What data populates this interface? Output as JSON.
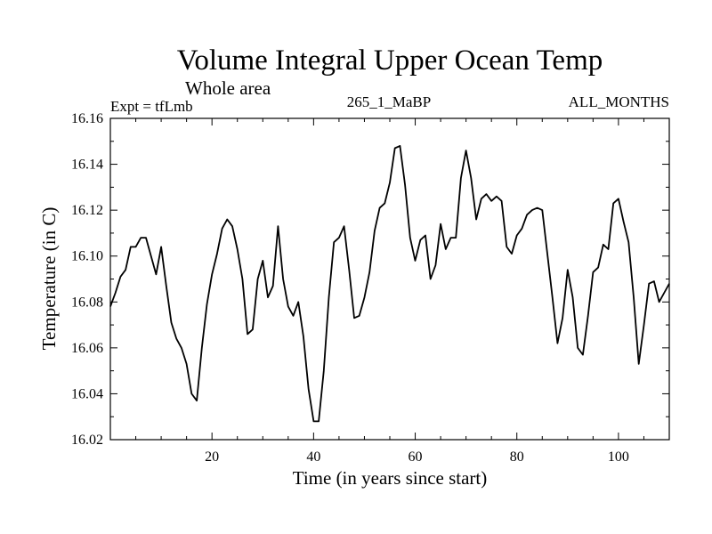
{
  "chart_data": {
    "type": "line",
    "title": "Volume Integral Upper Ocean Temp",
    "subtitle": "Whole area",
    "expt_label": "Expt = tfLmb",
    "run_label": "265_1_MaBP",
    "months_label": "ALL_MONTHS",
    "xlabel": "Time (in years since start)",
    "ylabel": "Temperature (in C)",
    "xlim": [
      0,
      110
    ],
    "ylim": [
      16.02,
      16.16
    ],
    "x_ticks": [
      20,
      40,
      60,
      80,
      100
    ],
    "y_ticks": [
      "16.02",
      "16.04",
      "16.06",
      "16.08",
      "16.10",
      "16.12",
      "16.14",
      "16.16"
    ],
    "series": [
      {
        "name": "Temperature",
        "x": [
          0,
          1,
          2,
          3,
          4,
          5,
          6,
          7,
          8,
          9,
          10,
          11,
          12,
          13,
          14,
          15,
          16,
          17,
          18,
          19,
          20,
          21,
          22,
          23,
          24,
          25,
          26,
          27,
          28,
          29,
          30,
          31,
          32,
          33,
          34,
          35,
          36,
          37,
          38,
          39,
          40,
          41,
          42,
          43,
          44,
          45,
          46,
          47,
          48,
          49,
          50,
          51,
          52,
          53,
          54,
          55,
          56,
          57,
          58,
          59,
          60,
          61,
          62,
          63,
          64,
          65,
          66,
          67,
          68,
          69,
          70,
          71,
          72,
          73,
          74,
          75,
          76,
          77,
          78,
          79,
          80,
          81,
          82,
          83,
          84,
          85,
          86,
          87,
          88,
          89,
          90,
          91,
          92,
          93,
          94,
          95,
          96,
          97,
          98,
          99,
          100,
          101,
          102,
          103,
          104,
          105,
          106,
          107,
          108,
          109,
          110
        ],
        "values": [
          16.078,
          16.084,
          16.091,
          16.094,
          16.104,
          16.104,
          16.108,
          16.108,
          16.1,
          16.092,
          16.104,
          16.087,
          16.071,
          16.064,
          16.06,
          16.053,
          16.04,
          16.037,
          16.06,
          16.079,
          16.092,
          16.101,
          16.112,
          16.116,
          16.113,
          16.103,
          16.09,
          16.066,
          16.068,
          16.09,
          16.098,
          16.082,
          16.087,
          16.113,
          16.09,
          16.078,
          16.074,
          16.08,
          16.065,
          16.042,
          16.028,
          16.028,
          16.05,
          16.082,
          16.106,
          16.108,
          16.113,
          16.094,
          16.073,
          16.074,
          16.082,
          16.093,
          16.111,
          16.121,
          16.123,
          16.132,
          16.147,
          16.148,
          16.131,
          16.108,
          16.098,
          16.107,
          16.109,
          16.09,
          16.096,
          16.114,
          16.103,
          16.108,
          16.108,
          16.134,
          16.146,
          16.134,
          16.116,
          16.125,
          16.127,
          16.124,
          16.126,
          16.124,
          16.104,
          16.101,
          16.109,
          16.112,
          16.118,
          16.12,
          16.121,
          16.12,
          16.101,
          16.082,
          16.062,
          16.073,
          16.094,
          16.082,
          16.06,
          16.057,
          16.074,
          16.093,
          16.095,
          16.105,
          16.103,
          16.123,
          16.125,
          16.115,
          16.106,
          16.082,
          16.053,
          16.07,
          16.088,
          16.089,
          16.08,
          16.084,
          16.088
        ]
      }
    ]
  }
}
